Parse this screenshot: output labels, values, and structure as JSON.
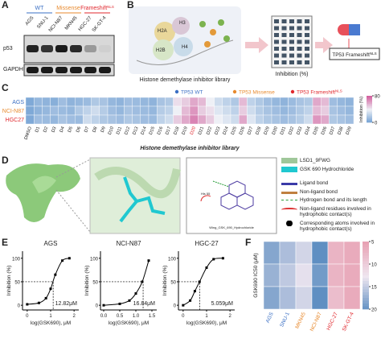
{
  "panel_labels": [
    "A",
    "B",
    "C",
    "D",
    "E",
    "F"
  ],
  "blot": {
    "groups": [
      {
        "name": "WT",
        "color": "#3a6fc4"
      },
      {
        "name": "Missense",
        "color": "#e88a2e"
      },
      {
        "name": "Frameshift",
        "sup": "NLS",
        "color": "#e0282e"
      }
    ],
    "cell_lines": [
      "AGS",
      "SNU-1",
      "NCI-N87",
      "MKN45",
      "HGC-27",
      "SK-GT-4"
    ],
    "rows": [
      "p53",
      "GAPDH"
    ]
  },
  "schematic": {
    "histones": [
      "H2A",
      "H3",
      "H2B",
      "H4"
    ],
    "library": "Histone demethylase inhibitor library",
    "inhibition": "Inhibition (%)",
    "target": "TP53 Frameshift",
    "target_sup": "NLS"
  },
  "docking": {
    "legend": [
      "LSD1_9FWG",
      "GSK 690 Hydrochloride",
      "Ligand bond",
      "Non-ligand bond",
      "Hydrogen bond and its length",
      "Non-ligand residues involved in hydrophobic contact(s)",
      "Corresponding atoms involved in hydrophobic contact(s)"
    ],
    "residue": "His 55",
    "ligand": "Wing_GSK_690_Hydrochloride"
  },
  "chart_data": [
    {
      "type": "heatmap",
      "xlabel": "Histone demethylase inhibitor library",
      "legend": [
        {
          "name": "TP53 WT",
          "color": "#3a6fc4"
        },
        {
          "name": "TP53 Missense",
          "color": "#e88a2e"
        },
        {
          "name": "TP53 Frameshift",
          "sup": "NLS",
          "color": "#e0282e"
        }
      ],
      "categories": [
        "DMSO",
        "D1",
        "D2",
        "D3",
        "D4",
        "D5",
        "D6",
        "D7",
        "D8",
        "D9",
        "D10",
        "D11",
        "D12",
        "D13",
        "D14",
        "D15",
        "D16",
        "D17",
        "D18",
        "D19",
        "D20",
        "D21",
        "D22",
        "D23",
        "D24",
        "D25",
        "D26",
        "D27",
        "D28",
        "D29",
        "D30",
        "D31",
        "D32",
        "D33",
        "D34",
        "D35",
        "D36",
        "D37",
        "D38",
        "D39"
      ],
      "highlight": "D20",
      "highlight_color": "#e0282e",
      "series": [
        {
          "name": "AGS",
          "color": "#3a6fc4",
          "values": [
            5,
            12,
            10,
            8,
            15,
            10,
            12,
            14,
            20,
            18,
            12,
            10,
            15,
            14,
            12,
            10,
            18,
            20,
            45,
            50,
            60,
            55,
            40,
            30,
            25,
            20,
            55,
            25,
            20,
            15,
            12,
            10,
            14,
            18,
            20,
            60,
            55,
            15,
            12,
            10
          ]
        },
        {
          "name": "NCI-N87",
          "color": "#e88a2e",
          "values": [
            5,
            10,
            12,
            15,
            14,
            12,
            20,
            25,
            30,
            22,
            15,
            12,
            18,
            15,
            14,
            12,
            22,
            25,
            40,
            55,
            65,
            50,
            45,
            35,
            30,
            25,
            50,
            30,
            22,
            18,
            15,
            12,
            15,
            20,
            25,
            55,
            50,
            18,
            15,
            12
          ]
        },
        {
          "name": "HGC27",
          "color": "#e0282e",
          "values": [
            5,
            15,
            14,
            12,
            18,
            15,
            14,
            30,
            25,
            20,
            18,
            15,
            20,
            18,
            15,
            14,
            25,
            30,
            50,
            60,
            70,
            60,
            50,
            40,
            35,
            30,
            60,
            35,
            25,
            20,
            18,
            15,
            18,
            22,
            30,
            65,
            60,
            20,
            18,
            15
          ]
        }
      ],
      "colorbar": {
        "label": "Inhibition (%)",
        "lim": [
          0,
          80
        ],
        "ticks": [
          0,
          80
        ],
        "colors": [
          "#6f9fd2",
          "#eef0f6",
          "#d2609e"
        ]
      }
    },
    {
      "type": "line",
      "title": "AGS",
      "x": [
        0,
        0.5,
        0.8,
        1.0,
        1.2,
        1.5,
        1.8
      ],
      "values": [
        2,
        5,
        15,
        35,
        65,
        95,
        100
      ],
      "xlim": [
        -0.2,
        2.2
      ],
      "ylim": [
        -10,
        115
      ],
      "xticks": [
        0,
        1,
        2
      ],
      "yticks": [
        0,
        50,
        100
      ],
      "xlabel": "log(GSK690), μM",
      "ylabel": "Inhibition (%)",
      "ic50": 12.82,
      "ic50_label": "12.82μM",
      "color": "#000000"
    },
    {
      "type": "line",
      "title": "NCI-N87",
      "x": [
        0,
        0.5,
        0.8,
        1.0,
        1.2,
        1.4
      ],
      "values": [
        0,
        3,
        10,
        25,
        50,
        95
      ],
      "xlim": [
        -0.1,
        1.65
      ],
      "ylim": [
        -10,
        115
      ],
      "xticks": [
        {
          "value": 0,
          "label": "0.0"
        },
        0.5,
        {
          "value": 1,
          "label": "1.0"
        },
        1.5
      ],
      "yticks": [
        0,
        50,
        100
      ],
      "xlabel": "log(GSK690), μM",
      "ylabel": "Inhibition (%)",
      "ic50": 16.84,
      "ic50_label": "16.84μM",
      "color": "#000000"
    },
    {
      "type": "line",
      "title": "HGC-27",
      "x": [
        0,
        0.3,
        0.5,
        0.7,
        1.0,
        1.3,
        1.7
      ],
      "values": [
        0,
        10,
        30,
        50,
        80,
        98,
        100
      ],
      "xlim": [
        -0.2,
        2.2
      ],
      "ylim": [
        -10,
        115
      ],
      "xticks": [
        0,
        1,
        2
      ],
      "yticks": [
        0,
        50,
        100
      ],
      "xlabel": "log(GSK690), μM",
      "ylabel": "Inhibition (%)",
      "ic50": 5.059,
      "ic50_label": "5.059μM",
      "color": "#000000"
    },
    {
      "type": "heatmap",
      "ylabel": "GSK690 IC50 (μM)",
      "categories": [
        "AGS",
        "SNU-1",
        "MKN45",
        "NCI-N87",
        "HGC-27",
        "SK-GT-4"
      ],
      "category_colors": [
        "#3a6fc4",
        "#3a6fc4",
        "#e88a2e",
        "#e88a2e",
        "#e0282e",
        "#e0282e"
      ],
      "series": [
        {
          "values": [
            18,
            16,
            14,
            20,
            7,
            6
          ]
        },
        {
          "values": [
            17,
            15,
            13,
            19,
            7,
            6
          ]
        },
        {
          "values": [
            18,
            16,
            14,
            21,
            8,
            6
          ]
        }
      ],
      "colorbar": {
        "lim": [
          5,
          20
        ],
        "ticks": [
          5,
          10,
          15,
          20
        ],
        "colors": [
          "#e8a2b4",
          "#efe6f0",
          "#5f8fc2"
        ],
        "direction": "down"
      }
    }
  ]
}
